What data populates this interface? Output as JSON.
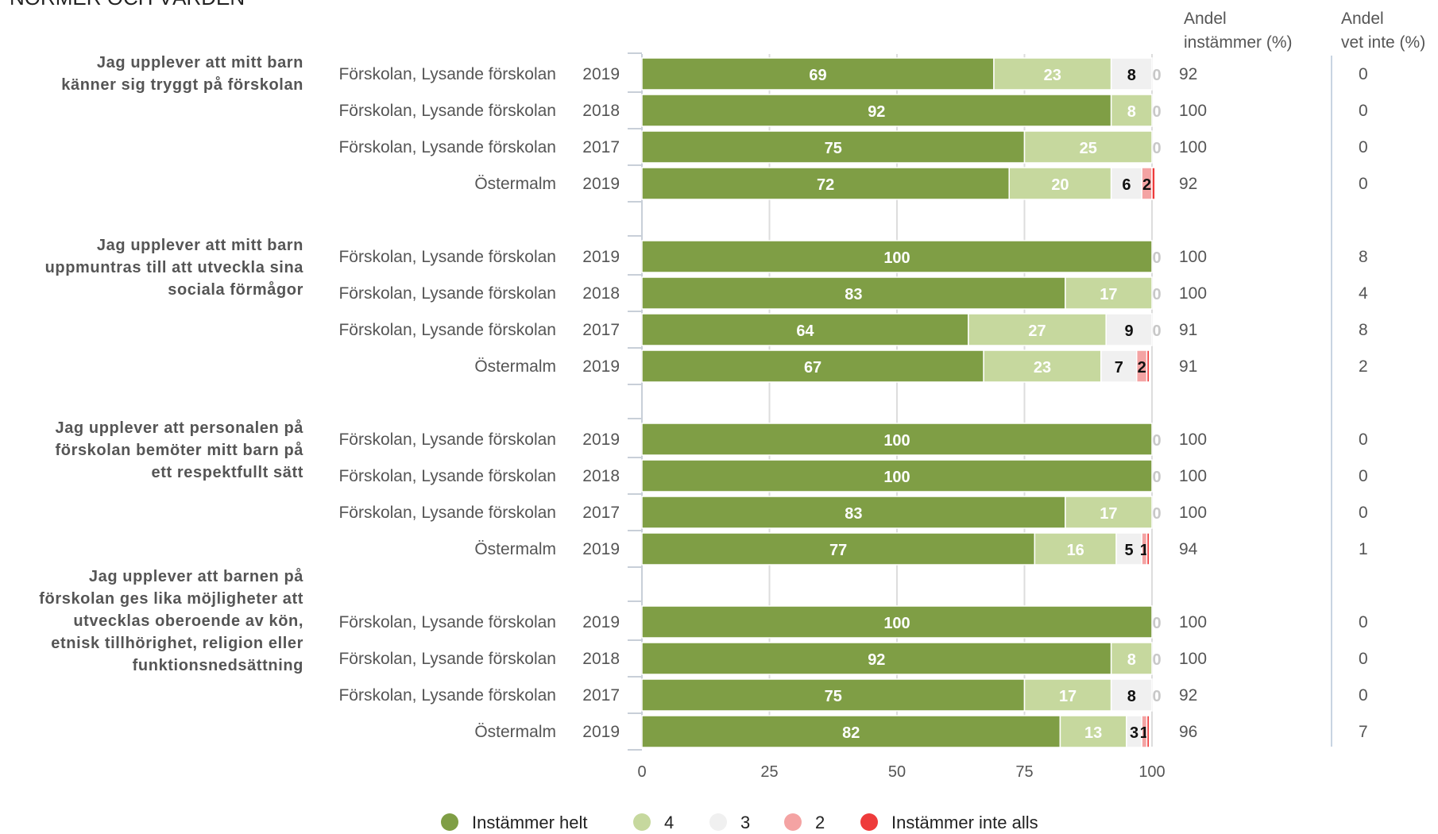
{
  "page": {
    "section_title": "NORMER OCH VÄRDEN"
  },
  "chart_data": {
    "type": "bar",
    "orientation": "horizontal",
    "stacked": true,
    "xlim": [
      0,
      100
    ],
    "x_ticks": [
      "0",
      "25",
      "50",
      "75",
      "100"
    ],
    "gridlines": true,
    "legend_position": "bottom",
    "columns": {
      "agree_header": [
        "Andel",
        "instämmer (%)"
      ],
      "dontknow_header": [
        "Andel",
        "vet inte (%)"
      ]
    },
    "series": [
      {
        "name": "Instämmer helt",
        "color": "#7f9e45",
        "label_color": "#ffffff"
      },
      {
        "name": "4",
        "color": "#c6d89e",
        "label_color": "#ffffff"
      },
      {
        "name": "3",
        "color": "#f0f0f0",
        "label_color": "#111111"
      },
      {
        "name": "2",
        "color": "#f4a3a3",
        "label_color": "#111111"
      },
      {
        "name": "Instämmer inte alls",
        "color": "#ee3b3b",
        "label_color": "#111111"
      }
    ],
    "groups": [
      {
        "question_lines": [
          "Jag upplever att mitt barn",
          "känner sig tryggt på förskolan"
        ],
        "rows": [
          {
            "name": "Förskolan, Lysande förskolan",
            "year": "2019",
            "values": [
              69,
              23,
              8,
              0,
              0
            ],
            "labels": [
              "69",
              "23",
              "8",
              "0",
              ""
            ],
            "agree": "92",
            "dont_know": "0"
          },
          {
            "name": "Förskolan, Lysande förskolan",
            "year": "2018",
            "values": [
              92,
              8,
              0,
              0,
              0
            ],
            "labels": [
              "92",
              "8",
              "0",
              "",
              ""
            ],
            "agree": "100",
            "dont_know": "0"
          },
          {
            "name": "Förskolan, Lysande förskolan",
            "year": "2017",
            "values": [
              75,
              25,
              0,
              0,
              0
            ],
            "labels": [
              "75",
              "25",
              "0",
              "",
              ""
            ],
            "agree": "100",
            "dont_know": "0"
          },
          {
            "name": "Östermalm",
            "year": "2019",
            "values": [
              72,
              20,
              6,
              2,
              0.6
            ],
            "labels": [
              "72",
              "20",
              "6",
              "2",
              ""
            ],
            "agree": "92",
            "dont_know": "0"
          }
        ]
      },
      {
        "question_lines": [
          "Jag upplever att mitt barn",
          "uppmuntras till att utveckla sina",
          "sociala förmågor"
        ],
        "rows": [
          {
            "name": "Förskolan, Lysande förskolan",
            "year": "2019",
            "values": [
              100,
              0,
              0,
              0,
              0
            ],
            "labels": [
              "100",
              "0",
              "",
              "",
              ""
            ],
            "agree": "100",
            "dont_know": "8"
          },
          {
            "name": "Förskolan, Lysande förskolan",
            "year": "2018",
            "values": [
              83,
              17,
              0,
              0,
              0
            ],
            "labels": [
              "83",
              "17",
              "0",
              "",
              ""
            ],
            "agree": "100",
            "dont_know": "4"
          },
          {
            "name": "Förskolan, Lysande förskolan",
            "year": "2017",
            "values": [
              64,
              27,
              9,
              0,
              0
            ],
            "labels": [
              "64",
              "27",
              "9",
              "0",
              ""
            ],
            "agree": "91",
            "dont_know": "8"
          },
          {
            "name": "Östermalm",
            "year": "2019",
            "values": [
              67,
              23,
              7,
              2,
              0.5
            ],
            "labels": [
              "67",
              "23",
              "7",
              "2",
              ""
            ],
            "agree": "91",
            "dont_know": "2"
          }
        ]
      },
      {
        "question_lines": [
          "Jag upplever att personalen på",
          "förskolan bemöter mitt barn på",
          "ett respektfullt sätt"
        ],
        "rows": [
          {
            "name": "Förskolan, Lysande förskolan",
            "year": "2019",
            "values": [
              100,
              0,
              0,
              0,
              0
            ],
            "labels": [
              "100",
              "0",
              "",
              "",
              ""
            ],
            "agree": "100",
            "dont_know": "0"
          },
          {
            "name": "Förskolan, Lysande förskolan",
            "year": "2018",
            "values": [
              100,
              0,
              0,
              0,
              0
            ],
            "labels": [
              "100",
              "0",
              "",
              "",
              ""
            ],
            "agree": "100",
            "dont_know": "0"
          },
          {
            "name": "Förskolan, Lysande förskolan",
            "year": "2017",
            "values": [
              83,
              17,
              0,
              0,
              0
            ],
            "labels": [
              "83",
              "17",
              "0",
              "",
              ""
            ],
            "agree": "100",
            "dont_know": "0"
          },
          {
            "name": "Östermalm",
            "year": "2019",
            "values": [
              77,
              16,
              5,
              1,
              0.5
            ],
            "labels": [
              "77",
              "16",
              "5",
              "1",
              ""
            ],
            "agree": "94",
            "dont_know": "1"
          }
        ]
      },
      {
        "question_lines": [
          "Jag upplever att barnen på",
          "förskolan ges lika möjligheter att",
          "utvecklas oberoende av kön,",
          "etnisk tillhörighet, religion eller",
          "funktionsnedsättning"
        ],
        "rows": [
          {
            "name": "Förskolan, Lysande förskolan",
            "year": "2019",
            "values": [
              100,
              0,
              0,
              0,
              0
            ],
            "labels": [
              "100",
              "0",
              "",
              "",
              ""
            ],
            "agree": "100",
            "dont_know": "0"
          },
          {
            "name": "Förskolan, Lysande förskolan",
            "year": "2018",
            "values": [
              92,
              8,
              0,
              0,
              0
            ],
            "labels": [
              "92",
              "8",
              "0",
              "",
              ""
            ],
            "agree": "100",
            "dont_know": "0"
          },
          {
            "name": "Förskolan, Lysande förskolan",
            "year": "2017",
            "values": [
              75,
              17,
              8,
              0,
              0
            ],
            "labels": [
              "75",
              "17",
              "8",
              "0",
              ""
            ],
            "agree": "92",
            "dont_know": "0"
          },
          {
            "name": "Östermalm",
            "year": "2019",
            "values": [
              82,
              13,
              3,
              1,
              0.5
            ],
            "labels": [
              "82",
              "13",
              "3",
              "1",
              ""
            ],
            "agree": "96",
            "dont_know": "7"
          }
        ]
      }
    ]
  }
}
